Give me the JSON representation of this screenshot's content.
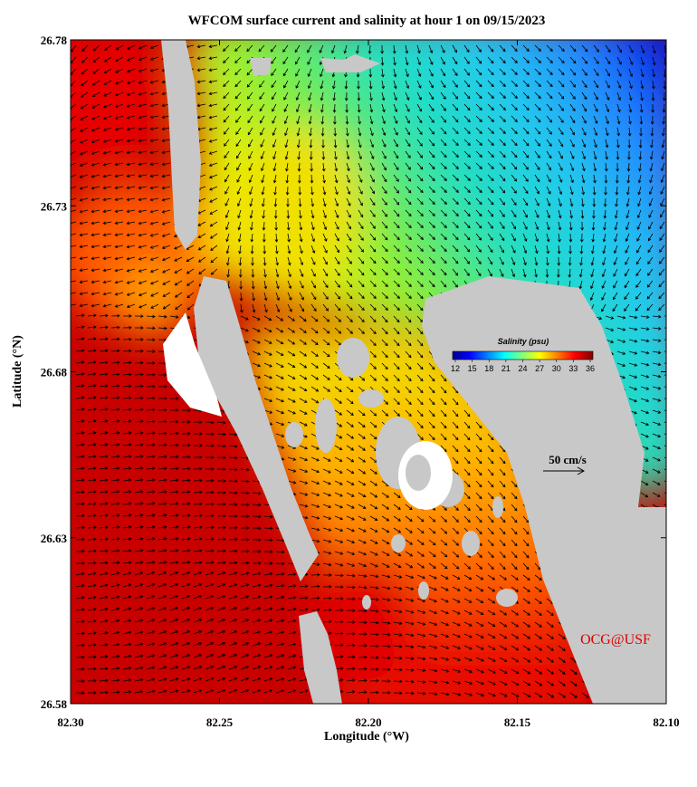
{
  "map": {
    "title": "WFCOM surface current and salinity at hour 1 on 09/15/2023",
    "xlabel": "Longitude (°W)",
    "ylabel": "Latitude (°N)",
    "xlim": [
      82.3,
      82.1
    ],
    "ylim": [
      26.58,
      26.78
    ],
    "xticks": [
      {
        "value": 82.3,
        "label": "82.30"
      },
      {
        "value": 82.25,
        "label": "82.25"
      },
      {
        "value": 82.2,
        "label": "82.20"
      },
      {
        "value": 82.15,
        "label": "82.15"
      },
      {
        "value": 82.1,
        "label": "82.10"
      }
    ],
    "yticks": [
      26.58,
      26.63,
      26.68,
      26.73,
      26.78
    ],
    "colorbar": {
      "title": "Salinity (psu)",
      "range": [
        12,
        36
      ],
      "ticks": [
        12,
        15,
        18,
        21,
        24,
        27,
        30,
        33,
        36
      ]
    },
    "scale_label": "50 cm/s",
    "credit": "OCG@USF"
  }
}
